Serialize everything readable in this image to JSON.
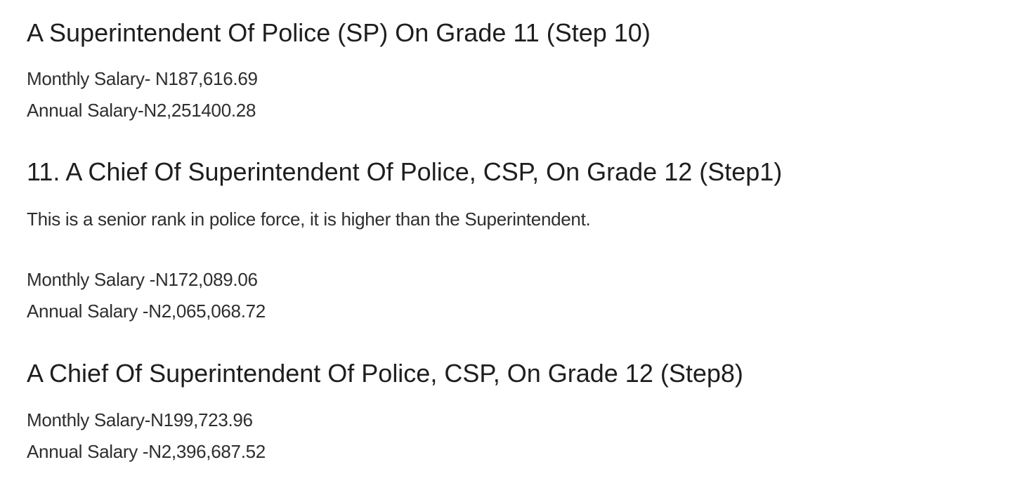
{
  "sections": [
    {
      "heading": "A Superintendent Of Police (SP) On Grade 11 (Step 10)",
      "monthly": "Monthly Salary- N187,616.69",
      "annual": "Annual Salary-N2,251400.28"
    },
    {
      "heading": "11. A Chief Of Superintendent Of Police, CSP, On Grade 12 (Step1)",
      "description": "This is a senior rank in police force, it is higher than the Superintendent.",
      "monthly": "Monthly Salary -N172,089.06",
      "annual": "Annual Salary -N2,065,068.72"
    },
    {
      "heading": "A Chief Of Superintendent Of Police, CSP, On Grade 12 (Step8)",
      "monthly": "Monthly Salary-N199,723.96",
      "annual": "Annual Salary -N2,396,687.52"
    }
  ]
}
